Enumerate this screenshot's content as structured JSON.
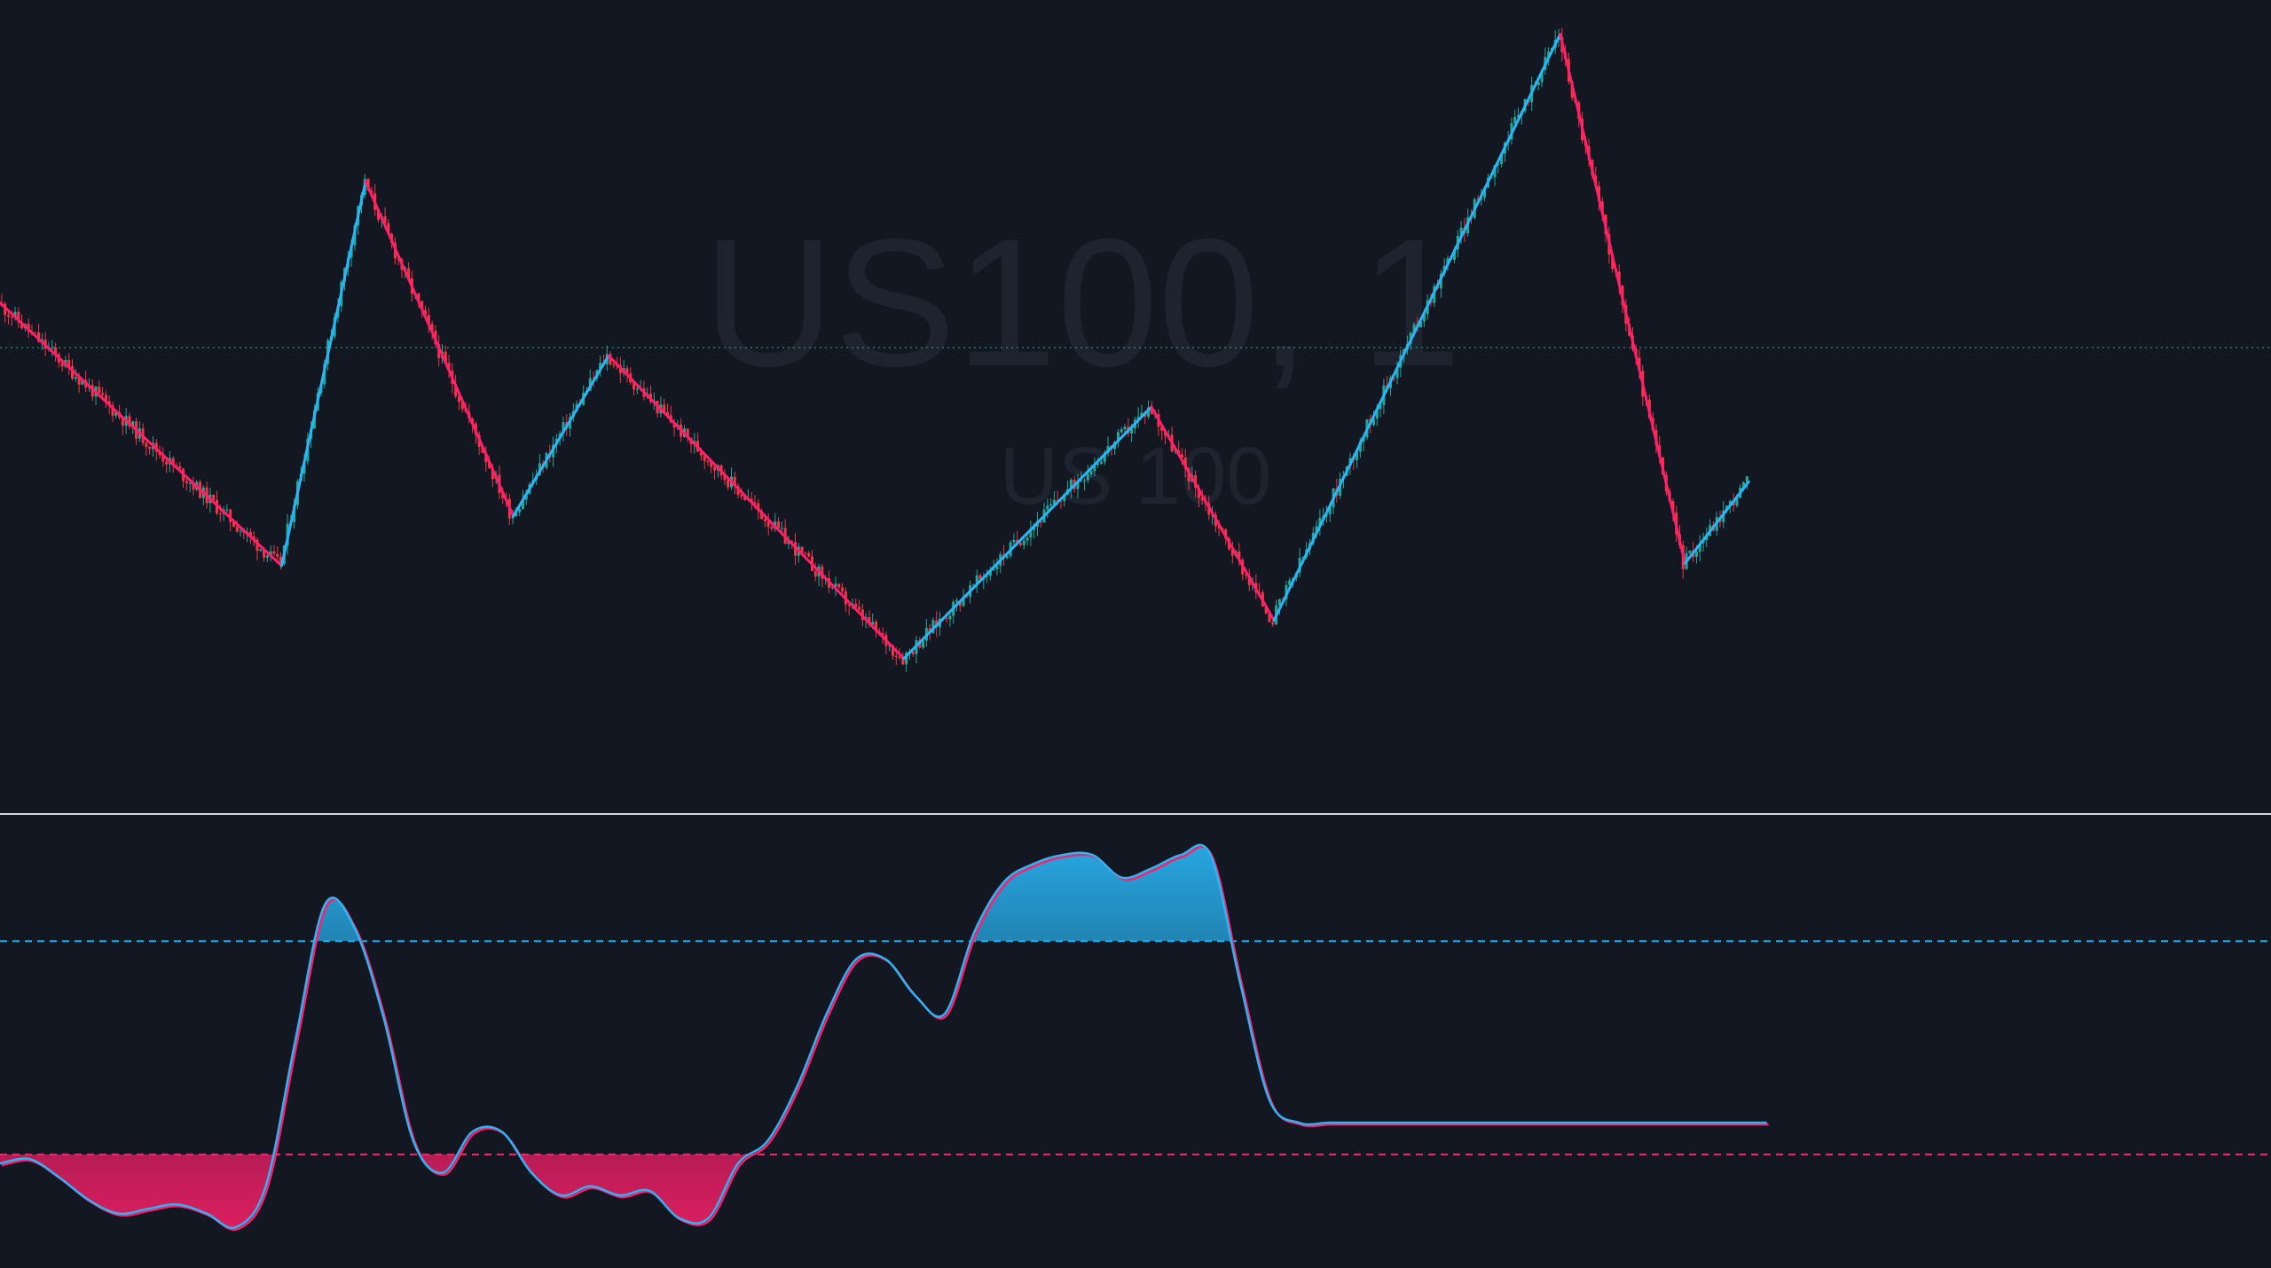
{
  "watermark": {
    "symbol_interval": "US100, 1",
    "description": "US 100"
  },
  "colors": {
    "background": "#131722",
    "bull": "#26a69a",
    "bear": "#f23645",
    "zigzag_up": "#29b6f6",
    "zigzag_down": "#ff1f6b",
    "osc_line_1": "#29b6f6",
    "osc_line_2": "#ff1f6b",
    "upper_level": "#29b6f6",
    "lower_level": "#ff1f6b",
    "divider": "#d1d4dc",
    "last_price_line": "#26a69a"
  },
  "chart_data": [
    {
      "type": "candlestick",
      "panel": "price",
      "grid": false,
      "legend": "none",
      "x_range": [
        0,
        1000
      ],
      "y_range": [
        0,
        1000
      ],
      "last_price": 573,
      "zigzag": [
        {
          "x": 0,
          "y": 628
        },
        {
          "x": 124,
          "y": 305
        },
        {
          "x": 161,
          "y": 777
        },
        {
          "x": 226,
          "y": 366
        },
        {
          "x": 268,
          "y": 563
        },
        {
          "x": 398,
          "y": 191
        },
        {
          "x": 507,
          "y": 500
        },
        {
          "x": 561,
          "y": 238
        },
        {
          "x": 687,
          "y": 958
        },
        {
          "x": 742,
          "y": 308
        },
        {
          "x": 770,
          "y": 408
        }
      ],
      "candle_count": 520
    },
    {
      "type": "line",
      "panel": "oscillator",
      "grid": false,
      "legend": "none",
      "x_range": [
        0,
        1000
      ],
      "y_range": [
        0,
        100
      ],
      "upper_level": 72,
      "lower_level": 25,
      "series": [
        {
          "color_key": "osc_line_1",
          "x": [
            0,
            13,
            26,
            39,
            52,
            65,
            78,
            91,
            104,
            117,
            130,
            143,
            156,
            169,
            182,
            195,
            208,
            221,
            234,
            247,
            260,
            273,
            286,
            299,
            312,
            325,
            338,
            351,
            364,
            377,
            390,
            403,
            416,
            429,
            442,
            455,
            468,
            481,
            494,
            507,
            520,
            533,
            546,
            559,
            572,
            585,
            598,
            611,
            624,
            637,
            650,
            663,
            676,
            689,
            702,
            715,
            728,
            741,
            754,
            767,
            778
          ],
          "values": [
            23,
            24,
            20,
            15,
            12,
            13,
            14,
            12,
            9,
            18,
            50,
            80,
            75,
            55,
            28,
            21,
            30,
            30,
            21,
            16,
            18,
            16,
            17,
            11,
            11,
            23,
            28,
            40,
            56,
            68,
            68,
            60,
            56,
            74,
            85,
            89,
            91,
            91,
            86,
            88,
            91,
            91,
            63,
            37,
            32,
            32,
            32,
            32,
            32,
            32,
            32,
            32,
            32,
            32,
            32,
            32,
            32,
            32,
            32,
            32,
            32
          ]
        }
      ]
    }
  ]
}
